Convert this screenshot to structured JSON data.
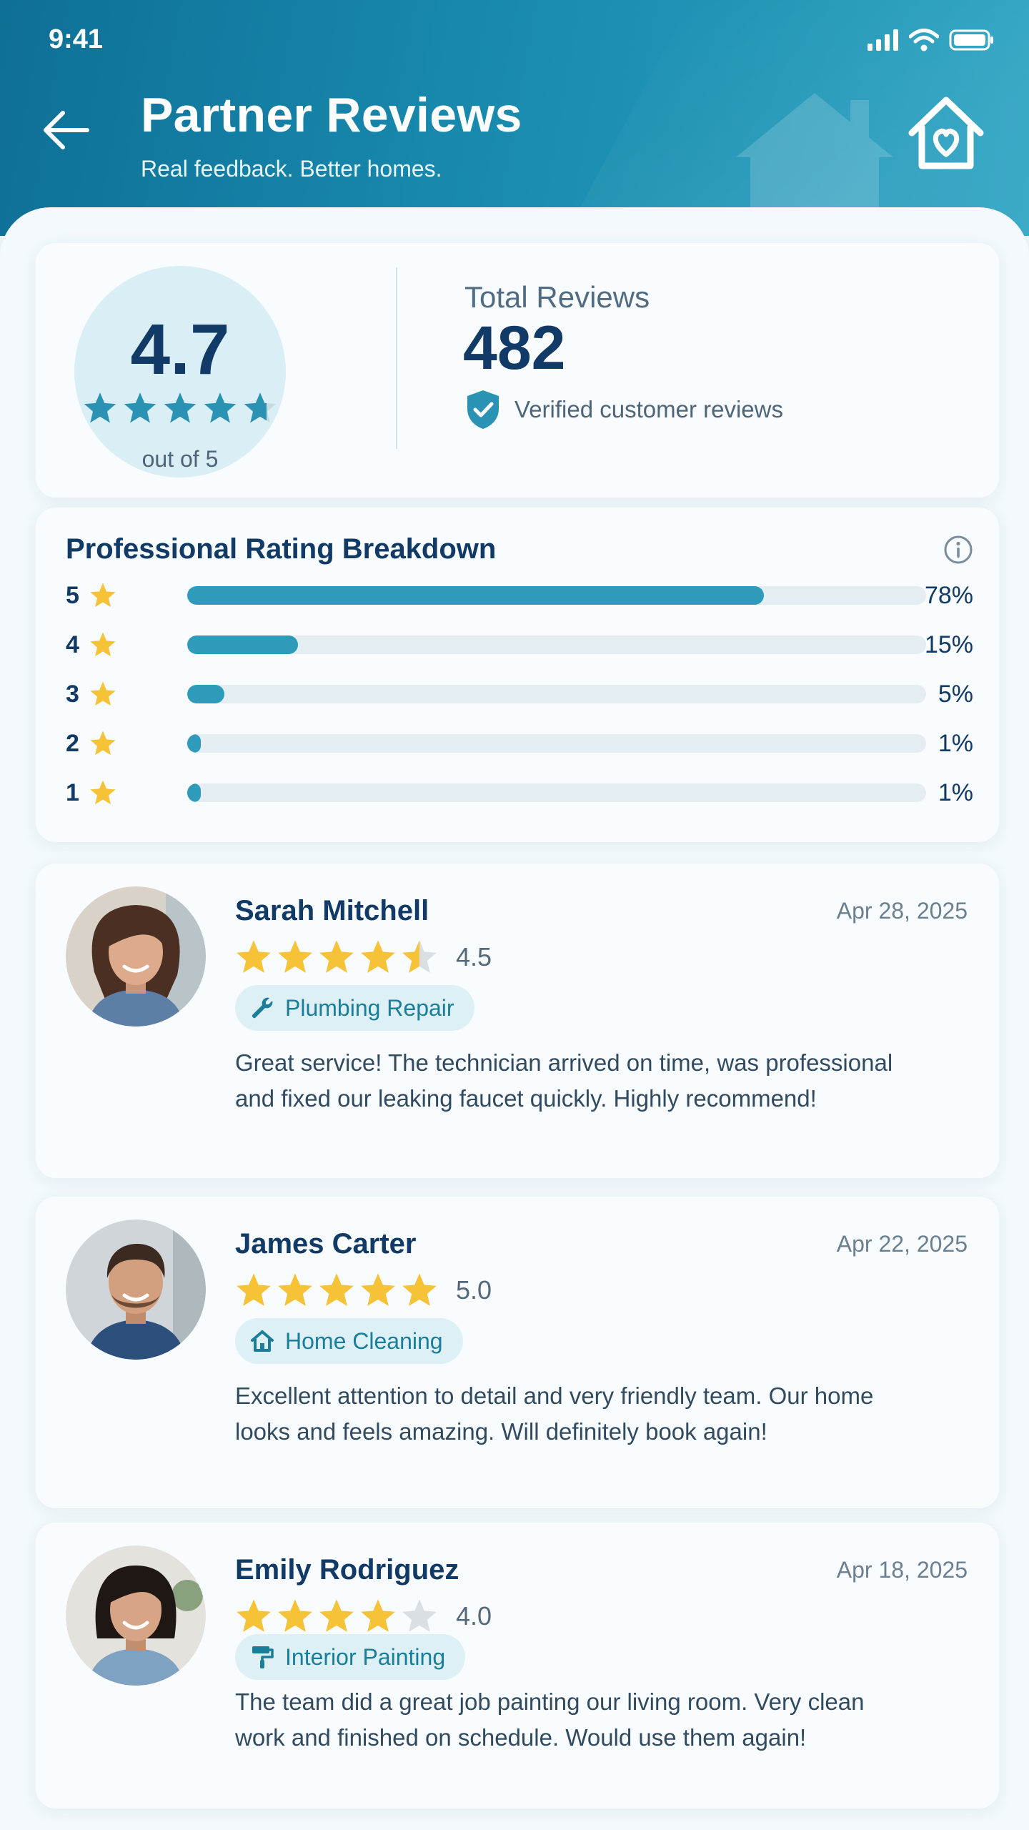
{
  "status_bar": {
    "time": "9:41"
  },
  "header": {
    "title": "Partner Reviews",
    "subtitle": "Real feedback. Better homes."
  },
  "summary": {
    "average_rating": "4.7",
    "rating_scale": "out of 5",
    "average_rating_value": 4.7,
    "total_label": "Total Reviews",
    "total_count": "482",
    "verified_label": "Verified customer reviews"
  },
  "breakdown": {
    "title": "Professional Rating Breakdown",
    "rows": [
      {
        "stars": "5",
        "percent_label": "78%",
        "percent": 78
      },
      {
        "stars": "4",
        "percent_label": "15%",
        "percent": 15
      },
      {
        "stars": "3",
        "percent_label": "5%",
        "percent": 5
      },
      {
        "stars": "2",
        "percent_label": "1%",
        "percent": 1
      },
      {
        "stars": "1",
        "percent_label": "1%",
        "percent": 1
      }
    ]
  },
  "reviews": [
    {
      "name": "Sarah Mitchell",
      "date": "Apr 28, 2025",
      "rating": "4.5",
      "rating_value": 4.5,
      "service": "Plumbing Repair",
      "service_icon": "wrench-icon",
      "text": "Great service! The technician arrived on time, was professional and fixed our leaking faucet quickly. Highly recommend!"
    },
    {
      "name": "James Carter",
      "date": "Apr 22, 2025",
      "rating": "5.0",
      "rating_value": 5.0,
      "service": "Home Cleaning",
      "service_icon": "house-icon",
      "text": "Excellent attention to detail and very friendly team. Our home looks and feels amazing. Will definitely book again!"
    },
    {
      "name": "Emily Rodriguez",
      "date": "Apr 18, 2025",
      "rating": "4.0",
      "rating_value": 4.0,
      "service": "Interior Painting",
      "service_icon": "paint-roller-icon",
      "text": "The team did a great job painting our living room. Very clean work and finished on schedule. Would use them again!"
    }
  ],
  "colors": {
    "header_start": "#0f6f96",
    "header_end": "#2aa3c2",
    "accent": "#2e9bbb",
    "star_gold": "#f5c238",
    "text_dark": "#113a66"
  }
}
